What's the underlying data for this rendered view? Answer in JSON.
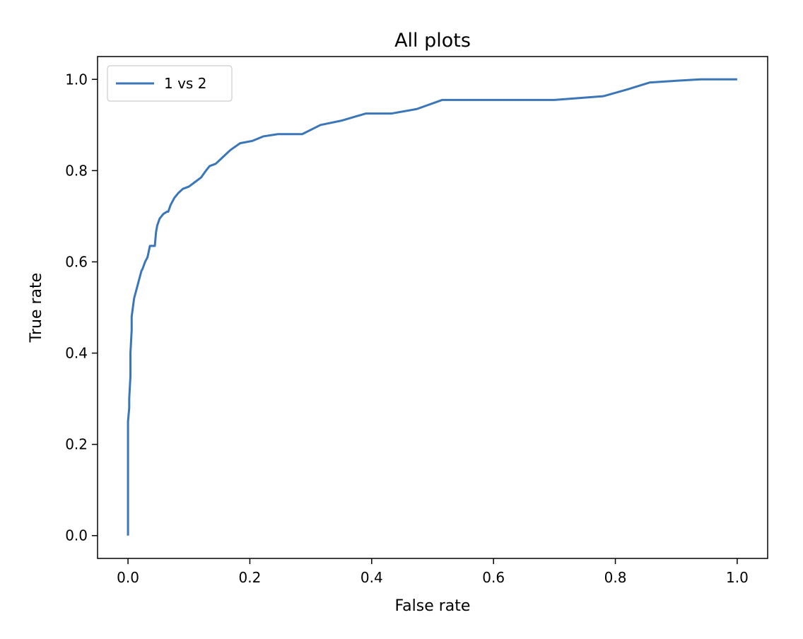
{
  "chart_data": {
    "type": "line",
    "title": "All plots",
    "xlabel": "False rate",
    "ylabel": "True rate",
    "xlim": [
      -0.05,
      1.05
    ],
    "ylim": [
      -0.05,
      1.05
    ],
    "xticks": [
      0.0,
      0.2,
      0.4,
      0.6,
      0.8,
      1.0
    ],
    "yticks": [
      0.0,
      0.2,
      0.4,
      0.6,
      0.8,
      1.0
    ],
    "xtick_labels": [
      "0.0",
      "0.2",
      "0.4",
      "0.6",
      "0.8",
      "1.0"
    ],
    "ytick_labels": [
      "0.0",
      "0.2",
      "0.4",
      "0.6",
      "0.8",
      "1.0"
    ],
    "grid": false,
    "legend_position": "top-left",
    "series": [
      {
        "name": "1 vs 2",
        "color": "#3a76b8",
        "x": [
          0.0,
          0.0,
          0.0,
          0.002,
          0.002,
          0.004,
          0.004,
          0.006,
          0.006,
          0.008,
          0.01,
          0.012,
          0.014,
          0.016,
          0.018,
          0.02,
          0.022,
          0.024,
          0.028,
          0.032,
          0.036,
          0.038,
          0.044,
          0.046,
          0.048,
          0.052,
          0.058,
          0.064,
          0.066,
          0.07,
          0.076,
          0.082,
          0.09,
          0.1,
          0.11,
          0.12,
          0.128,
          0.134,
          0.144,
          0.156,
          0.168,
          0.184,
          0.204,
          0.222,
          0.246,
          0.27,
          0.286,
          0.316,
          0.352,
          0.39,
          0.432,
          0.474,
          0.516,
          0.56,
          0.6,
          0.7,
          0.78,
          0.82,
          0.856,
          0.9,
          0.94,
          1.0
        ],
        "y": [
          0.0,
          0.1,
          0.25,
          0.28,
          0.3,
          0.35,
          0.4,
          0.45,
          0.48,
          0.5,
          0.52,
          0.53,
          0.54,
          0.55,
          0.56,
          0.57,
          0.58,
          0.585,
          0.6,
          0.61,
          0.635,
          0.635,
          0.635,
          0.665,
          0.68,
          0.695,
          0.705,
          0.71,
          0.71,
          0.725,
          0.74,
          0.75,
          0.76,
          0.765,
          0.775,
          0.785,
          0.8,
          0.81,
          0.815,
          0.83,
          0.845,
          0.86,
          0.865,
          0.875,
          0.88,
          0.88,
          0.88,
          0.9,
          0.91,
          0.925,
          0.925,
          0.935,
          0.955,
          0.955,
          0.955,
          0.955,
          0.963,
          0.978,
          0.993,
          0.997,
          1.0,
          1.0
        ]
      }
    ]
  }
}
